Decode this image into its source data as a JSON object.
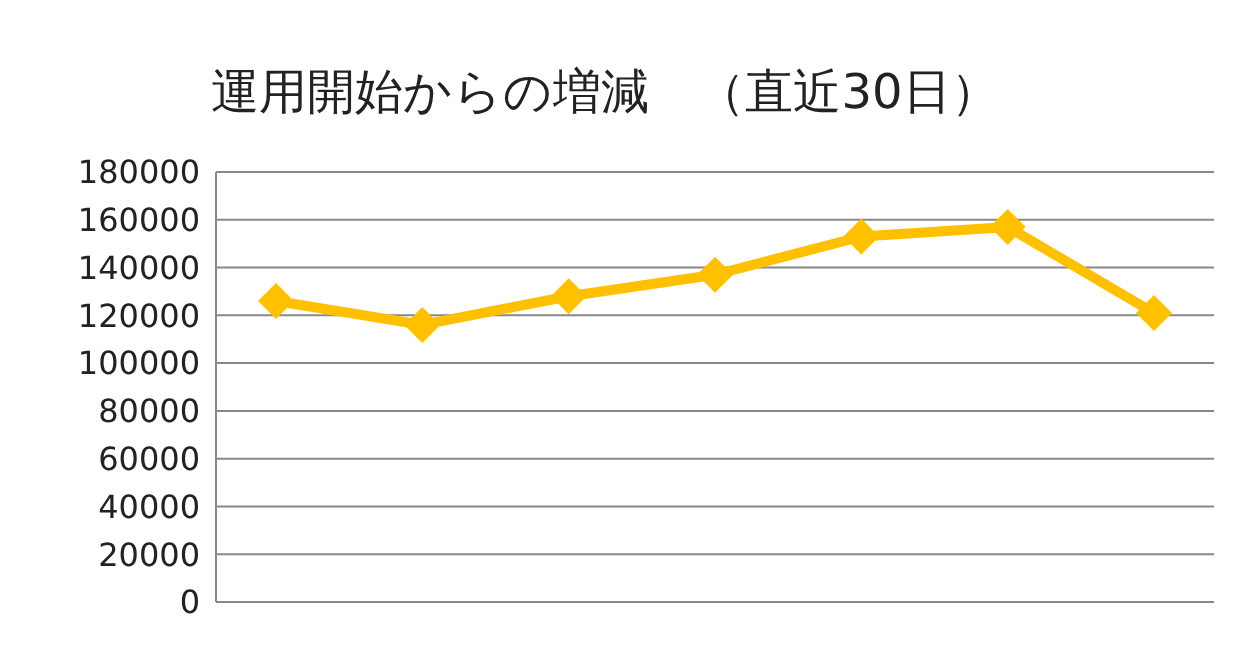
{
  "chart_data": {
    "type": "line",
    "title": "運用開始からの増減　（直近30日）",
    "categories": [
      null,
      null,
      null,
      null,
      null,
      null,
      null
    ],
    "series": [
      {
        "color": "#ffc000",
        "values": [
          126000,
          116000,
          128000,
          137000,
          153000,
          157000,
          121000
        ]
      }
    ],
    "ylim": [
      0,
      180000
    ],
    "yticks": [
      0,
      20000,
      40000,
      60000,
      80000,
      100000,
      120000,
      140000,
      160000,
      180000
    ],
    "grid": "y",
    "marker": "diamond",
    "line_style": "solid"
  }
}
